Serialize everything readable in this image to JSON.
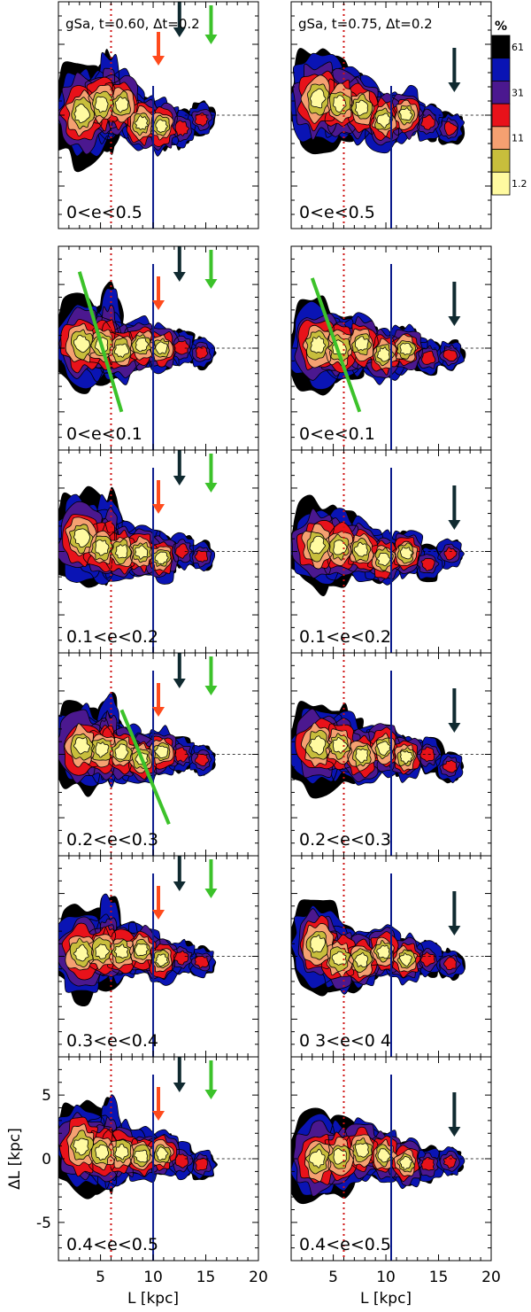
{
  "figure": {
    "colorbar": {
      "unit": "%",
      "ticks": [
        "61",
        "31",
        "11",
        "1.2"
      ],
      "levels": [
        {
          "color": "#000000"
        },
        {
          "color": "#0a14b4"
        },
        {
          "color": "#4b188f"
        },
        {
          "color": "#e8121a"
        },
        {
          "color": "#f5a071"
        },
        {
          "color": "#c8be3c"
        },
        {
          "color": "#fffaa0"
        }
      ]
    },
    "x_axis": {
      "label": "L [kpc]",
      "range": [
        1,
        20
      ],
      "ticks": [
        5,
        10,
        15,
        20
      ]
    },
    "y_axis": {
      "label": "ΔL [kpc]",
      "range": [
        -8,
        8
      ],
      "ticks": [
        -5,
        0,
        5
      ]
    },
    "markers": {
      "red_dotted_line_L": 6,
      "blue_line_L": [
        10,
        10.5
      ],
      "colors": {
        "red": "#ff4a1c",
        "dark": "#102a30",
        "green": "#3cc22a",
        "blue": "#0a1a8c",
        "dotted": "#d01414"
      }
    }
  },
  "chart_data": [
    {
      "type": "heatmap",
      "column": "left",
      "row": 1,
      "title": "gSa, t=0.60, Δt=0.2",
      "label": "0<e<0.5",
      "arrows_L": {
        "red": 10.5,
        "dark": 12.5,
        "green": 15.5
      },
      "green_line": null
    },
    {
      "type": "heatmap",
      "column": "right",
      "row": 1,
      "title": "gSa, t=0.75, Δt=0.2",
      "label": "0<e<0.5",
      "arrows_L": {
        "dark": 16.5
      },
      "green_line": null
    },
    {
      "type": "heatmap",
      "column": "left",
      "row": 2,
      "label": "0<e<0.1",
      "arrows_L": {
        "red": 10.5,
        "dark": 12.5,
        "green": 15.5
      },
      "green_line": [
        [
          3,
          6
        ],
        [
          7,
          -5
        ]
      ]
    },
    {
      "type": "heatmap",
      "column": "right",
      "row": 2,
      "label": "0<e<0.1",
      "arrows_L": {
        "dark": 16.5
      },
      "green_line": [
        [
          3,
          5.5
        ],
        [
          7.5,
          -5
        ]
      ]
    },
    {
      "type": "heatmap",
      "column": "left",
      "row": 3,
      "label": "0.1<e<0.2",
      "arrows_L": {
        "red": 10.5,
        "dark": 12.5,
        "green": 15.5
      },
      "green_line": null
    },
    {
      "type": "heatmap",
      "column": "right",
      "row": 3,
      "label": "0.1<e<0.2",
      "arrows_L": {
        "dark": 16.5
      },
      "green_line": null
    },
    {
      "type": "heatmap",
      "column": "left",
      "row": 4,
      "label": "0.2<e<0.3",
      "arrows_L": {
        "red": 10.5,
        "dark": 12.5,
        "green": 15.5
      },
      "green_line": [
        [
          7,
          3.5
        ],
        [
          11.5,
          -5.5
        ]
      ]
    },
    {
      "type": "heatmap",
      "column": "right",
      "row": 4,
      "label": "0.2<e<0.3",
      "arrows_L": {
        "dark": 16.5
      },
      "green_line": null
    },
    {
      "type": "heatmap",
      "column": "left",
      "row": 5,
      "label": "0.3<e<0.4",
      "arrows_L": {
        "red": 10.5,
        "dark": 12.5,
        "green": 15.5
      },
      "green_line": null
    },
    {
      "type": "heatmap",
      "column": "right",
      "row": 5,
      "label": "0 3<e<0 4",
      "arrows_L": {
        "dark": 16.5
      },
      "green_line": null
    },
    {
      "type": "heatmap",
      "column": "left",
      "row": 6,
      "label": "0.4<e<0.5",
      "arrows_L": {
        "red": 10.5,
        "dark": 12.5,
        "green": 15.5
      },
      "green_line": null
    },
    {
      "type": "heatmap",
      "column": "right",
      "row": 6,
      "label": "0.4<e<0.5",
      "arrows_L": {
        "dark": 16.5
      },
      "green_line": null
    }
  ]
}
